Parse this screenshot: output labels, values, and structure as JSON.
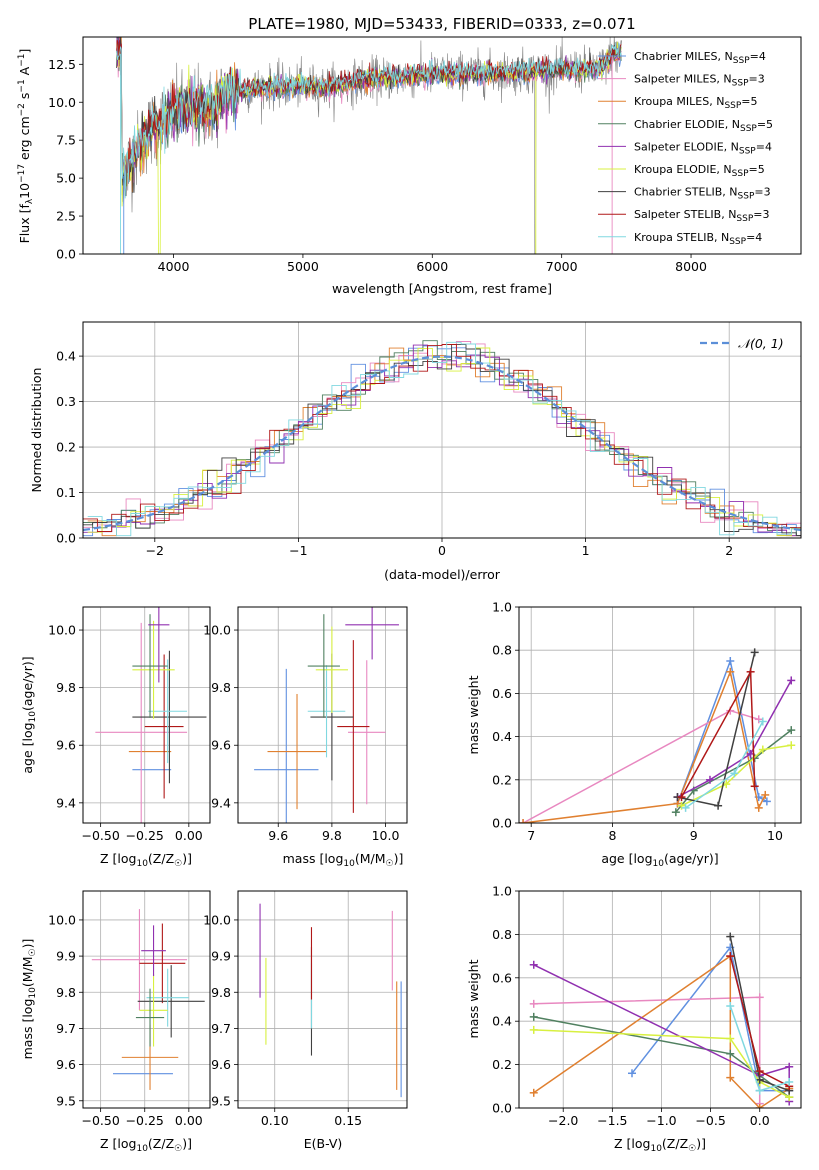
{
  "colors": {
    "c_ch_miles": "#6090e0",
    "c_sa_miles": "#e888c0",
    "c_kr_miles": "#e08030",
    "c_ch_elodie": "#508060",
    "c_sa_elodie": "#9030b0",
    "c_kr_elodie": "#d8f040",
    "c_ch_stelib": "#404040",
    "c_sa_stelib": "#b01818",
    "c_kr_stelib": "#80d8e0",
    "spec_gray": "#808080",
    "normal_curve": "#5b8fd8"
  },
  "chart_data": [
    {
      "id": "spectrum",
      "type": "line",
      "title": "PLATE=1980, MJD=53433, FIBERID=0333, z=0.071",
      "xlabel": "wavelength [Angstrom, rest frame]",
      "ylabel": "Flux [f",
      "ylabel_sub": "λ",
      "ylabel_rest": "10",
      "ylabel_sup1": "−17",
      "ylabel_units": " erg cm",
      "ylabel_sup2": "−2",
      "ylabel_units2": " s",
      "ylabel_sup3": "−1",
      "ylabel_units3": " A",
      "ylabel_sup4": "−1",
      "ylabel_close": "]",
      "xlim": [
        3300,
        8850
      ],
      "ylim": [
        0,
        14.3
      ],
      "xticks": [
        "4000",
        "5000",
        "6000",
        "7000",
        "8000"
      ],
      "xtick_values": [
        4000,
        5000,
        6000,
        7000,
        8000
      ],
      "yticks": [
        "0.0",
        "2.5",
        "5.0",
        "7.5",
        "10.0",
        "12.5"
      ],
      "ytick_values": [
        0,
        2.5,
        5.0,
        7.5,
        10.0,
        12.5
      ],
      "continuum": [
        [
          3600,
          4.9
        ],
        [
          3700,
          6.5
        ],
        [
          3800,
          8.0
        ],
        [
          3900,
          8.6
        ],
        [
          4000,
          9.3
        ],
        [
          4100,
          9.5
        ],
        [
          4200,
          9.8
        ],
        [
          4300,
          9.5
        ],
        [
          4400,
          10.6
        ],
        [
          4500,
          10.7
        ],
        [
          4700,
          11.0
        ],
        [
          5000,
          11.1
        ],
        [
          5200,
          11.0
        ],
        [
          5500,
          11.5
        ],
        [
          5800,
          11.7
        ],
        [
          6100,
          11.9
        ],
        [
          6400,
          11.9
        ],
        [
          6700,
          12.0
        ],
        [
          7000,
          12.1
        ],
        [
          7300,
          12.2
        ],
        [
          7400,
          13.2
        ]
      ],
      "legend": [
        {
          "label": "Chabrier MILES, N",
          "sub": "SSP",
          "tail": "=4"
        },
        {
          "label": "Salpeter MILES, N",
          "sub": "SSP",
          "tail": "=3"
        },
        {
          "label": "Kroupa MILES, N",
          "sub": "SSP",
          "tail": "=5"
        },
        {
          "label": "Chabrier ELODIE, N",
          "sub": "SSP",
          "tail": "=5"
        },
        {
          "label": "Salpeter ELODIE, N",
          "sub": "SSP",
          "tail": "=4"
        },
        {
          "label": "Kroupa ELODIE, N",
          "sub": "SSP",
          "tail": "=5"
        },
        {
          "label": "Chabrier STELIB, N",
          "sub": "SSP",
          "tail": "=3"
        },
        {
          "label": "Salpeter STELIB, N",
          "sub": "SSP",
          "tail": "=3"
        },
        {
          "label": "Kroupa STELIB, N",
          "sub": "SSP",
          "tail": "=4"
        }
      ]
    },
    {
      "id": "residuals",
      "type": "histogram",
      "xlabel": "(data-model)/error",
      "ylabel": "Normed distribution",
      "xlim": [
        -2.5,
        2.5
      ],
      "ylim": [
        0,
        0.475
      ],
      "xticks": [
        "−2",
        "−1",
        "0",
        "1",
        "2"
      ],
      "xtick_values": [
        -2,
        -1,
        0,
        1,
        2
      ],
      "yticks": [
        "0.0",
        "0.1",
        "0.2",
        "0.3",
        "0.4"
      ],
      "ytick_values": [
        0,
        0.1,
        0.2,
        0.3,
        0.4
      ],
      "grid": true,
      "legend_label": "𝒩(0, 1)",
      "bin_width": 0.1
    },
    {
      "id": "age_vs_Z",
      "type": "errorbar",
      "xlabel": "Z [log",
      "xlabel_sub": "10",
      "xlabel_rest": "(Z/Z",
      "xlabel_sub2": "☉",
      "xlabel_close": ")]",
      "ylabel": "age  [log",
      "ylabel_sub": "10",
      "ylabel_rest": "(age/yr)]",
      "xlim": [
        -0.6,
        0.12
      ],
      "ylim": [
        9.33,
        10.08
      ],
      "xticks": [
        "−0.50",
        "−0.25",
        "0.00"
      ],
      "xtick_values": [
        -0.5,
        -0.25,
        0.0
      ],
      "yticks": [
        "9.4",
        "9.6",
        "9.8",
        "10.0"
      ],
      "ytick_values": [
        9.4,
        9.6,
        9.8,
        10.0
      ],
      "grid": true,
      "points": [
        {
          "c": "c_ch_miles",
          "x": -0.21,
          "xe": 0.11,
          "y": 9.515,
          "ye": 0.0
        },
        {
          "c": "c_kr_miles",
          "x": -0.22,
          "xe": 0.12,
          "y": 9.578,
          "ye": 0.0
        },
        {
          "c": "c_sa_miles",
          "x": -0.27,
          "xe": 0.26,
          "y": 9.645,
          "ye": 0.38
        },
        {
          "c": "c_sa_stelib",
          "x": -0.14,
          "xe": 0.11,
          "y": 9.665,
          "ye": 0.25
        },
        {
          "c": "c_ch_stelib",
          "x": -0.11,
          "xe": 0.21,
          "y": 9.698,
          "ye": 0.23
        },
        {
          "c": "c_kr_stelib",
          "x": -0.12,
          "xe": 0.11,
          "y": 9.718,
          "ye": 0.18
        },
        {
          "c": "c_kr_elodie",
          "x": -0.2,
          "xe": 0.12,
          "y": 9.862,
          "ye": 0.17
        },
        {
          "c": "c_ch_elodie",
          "x": -0.22,
          "xe": 0.1,
          "y": 9.875,
          "ye": 0.18
        },
        {
          "c": "c_sa_elodie",
          "x": -0.17,
          "xe": 0.06,
          "y": 10.018,
          "ye": 0.2
        }
      ]
    },
    {
      "id": "age_vs_mass",
      "type": "errorbar",
      "xlabel": "mass [log",
      "xlabel_sub": "10",
      "xlabel_rest": "(M/M",
      "xlabel_sub2": "☉",
      "xlabel_close": ")]",
      "xlim": [
        9.45,
        10.08
      ],
      "ylim": [
        9.33,
        10.08
      ],
      "xticks": [
        "9.6",
        "9.8",
        "10.0"
      ],
      "xtick_values": [
        9.6,
        9.8,
        10.0
      ],
      "yticks": [
        "9.4",
        "9.6",
        "9.8",
        "10.0"
      ],
      "ytick_values": [
        9.4,
        9.6,
        9.8,
        10.0
      ],
      "grid": true,
      "points": [
        {
          "c": "c_ch_miles",
          "x": 9.63,
          "xe": 0.12,
          "y": 9.515,
          "ye": 0.35
        },
        {
          "c": "c_kr_miles",
          "x": 9.67,
          "xe": 0.11,
          "y": 9.578,
          "ye": 0.2
        },
        {
          "c": "c_sa_miles",
          "x": 9.93,
          "xe": 0.07,
          "y": 9.645,
          "ye": 0.25
        },
        {
          "c": "c_sa_stelib",
          "x": 9.88,
          "xe": 0.06,
          "y": 9.665,
          "ye": 0.3
        },
        {
          "c": "c_ch_stelib",
          "x": 9.8,
          "xe": 0.08,
          "y": 9.698,
          "ye": 0.22
        },
        {
          "c": "c_kr_stelib",
          "x": 9.78,
          "xe": 0.07,
          "y": 9.718,
          "ye": 0.16
        },
        {
          "c": "c_kr_elodie",
          "x": 9.8,
          "xe": 0.06,
          "y": 9.862,
          "ye": 0.15
        },
        {
          "c": "c_ch_elodie",
          "x": 9.77,
          "xe": 0.06,
          "y": 9.875,
          "ye": 0.18
        },
        {
          "c": "c_sa_elodie",
          "x": 9.95,
          "xe": 0.1,
          "y": 10.018,
          "ye": 0.12
        }
      ]
    },
    {
      "id": "weight_vs_age",
      "type": "line",
      "xlabel": "age  [log",
      "xlabel_sub": "10",
      "xlabel_rest": "(age/yr)]",
      "ylabel": "mass weight",
      "xlim": [
        6.85,
        10.32
      ],
      "ylim": [
        0,
        1
      ],
      "xticks": [
        "7",
        "8",
        "9",
        "10"
      ],
      "xtick_values": [
        7,
        8,
        9,
        10
      ],
      "yticks": [
        "0.0",
        "0.2",
        "0.4",
        "0.6",
        "0.8",
        "1.0"
      ],
      "ytick_values": [
        0,
        0.2,
        0.4,
        0.6,
        0.8,
        1.0
      ],
      "grid": true,
      "series": [
        {
          "c": "c_ch_miles",
          "pts": [
            [
              8.8,
              0.09
            ],
            [
              9.45,
              0.75
            ],
            [
              9.8,
              0.12
            ],
            [
              9.9,
              0.1
            ]
          ]
        },
        {
          "c": "c_sa_miles",
          "pts": [
            [
              6.9,
              0.0
            ],
            [
              9.45,
              0.52
            ],
            [
              9.8,
              0.48
            ]
          ]
        },
        {
          "c": "c_kr_miles",
          "pts": [
            [
              6.9,
              0.0
            ],
            [
              8.8,
              0.09
            ],
            [
              9.45,
              0.7
            ],
            [
              9.8,
              0.07
            ],
            [
              9.88,
              0.13
            ]
          ]
        },
        {
          "c": "c_ch_elodie",
          "pts": [
            [
              8.78,
              0.05
            ],
            [
              9.0,
              0.15
            ],
            [
              9.75,
              0.3
            ],
            [
              10.2,
              0.43
            ]
          ]
        },
        {
          "c": "c_sa_elodie",
          "pts": [
            [
              8.8,
              0.12
            ],
            [
              9.2,
              0.2
            ],
            [
              9.7,
              0.32
            ],
            [
              10.2,
              0.66
            ]
          ]
        },
        {
          "c": "c_kr_elodie",
          "pts": [
            [
              8.85,
              0.08
            ],
            [
              9.4,
              0.18
            ],
            [
              9.85,
              0.34
            ],
            [
              10.2,
              0.36
            ]
          ]
        },
        {
          "c": "c_ch_stelib",
          "pts": [
            [
              8.8,
              0.12
            ],
            [
              9.3,
              0.08
            ],
            [
              9.75,
              0.79
            ]
          ]
        },
        {
          "c": "c_sa_stelib",
          "pts": [
            [
              8.85,
              0.12
            ],
            [
              9.7,
              0.7
            ],
            [
              9.75,
              0.17
            ]
          ]
        },
        {
          "c": "c_kr_stelib",
          "pts": [
            [
              8.9,
              0.07
            ],
            [
              9.5,
              0.23
            ],
            [
              9.85,
              0.47
            ]
          ]
        }
      ]
    },
    {
      "id": "mass_vs_Z",
      "type": "errorbar",
      "xlabel": "Z [log",
      "xlabel_sub": "10",
      "xlabel_rest": "(Z/Z",
      "xlabel_sub2": "☉",
      "xlabel_close": ")]",
      "ylabel": "mass [log",
      "ylabel_sub": "10",
      "ylabel_rest": "(M/M",
      "ylabel_sub2": "☉",
      "ylabel_close": ")]",
      "xlim": [
        -0.6,
        0.12
      ],
      "ylim": [
        9.48,
        10.08
      ],
      "xticks": [
        "−0.50",
        "−0.25",
        "0.00"
      ],
      "xtick_values": [
        -0.5,
        -0.25,
        0.0
      ],
      "yticks": [
        "9.5",
        "9.6",
        "9.7",
        "9.8",
        "9.9",
        "10.0"
      ],
      "ytick_values": [
        9.5,
        9.6,
        9.7,
        9.8,
        9.9,
        10.0
      ],
      "grid": true,
      "points": [
        {
          "c": "c_ch_miles",
          "x": -0.26,
          "xe": 0.17,
          "y": 9.575,
          "ye": 0.0
        },
        {
          "c": "c_kr_miles",
          "x": -0.22,
          "xe": 0.16,
          "y": 9.62,
          "ye": 0.09
        },
        {
          "c": "c_sa_miles",
          "x": -0.28,
          "xe": 0.27,
          "y": 9.89,
          "ye": 0.14
        },
        {
          "c": "c_sa_stelib",
          "x": -0.15,
          "xe": 0.13,
          "y": 9.88,
          "ye": 0.11
        },
        {
          "c": "c_ch_stelib",
          "x": -0.1,
          "xe": 0.19,
          "y": 9.775,
          "ye": 0.1
        },
        {
          "c": "c_kr_stelib",
          "x": -0.12,
          "xe": 0.12,
          "y": 9.785,
          "ye": 0.08
        },
        {
          "c": "c_kr_elodie",
          "x": -0.2,
          "xe": 0.08,
          "y": 9.75,
          "ye": 0.1
        },
        {
          "c": "c_ch_elodie",
          "x": -0.22,
          "xe": 0.08,
          "y": 9.73,
          "ye": 0.08
        },
        {
          "c": "c_sa_elodie",
          "x": -0.2,
          "xe": 0.07,
          "y": 9.915,
          "ye": 0.07
        }
      ]
    },
    {
      "id": "mass_vs_EBV",
      "type": "errorbar",
      "xlabel": "E(B-V)",
      "xlim": [
        0.075,
        0.19
      ],
      "ylim": [
        9.48,
        10.08
      ],
      "xticks": [
        "0.10",
        "0.15"
      ],
      "xtick_values": [
        0.1,
        0.15
      ],
      "yticks": [
        "9.5",
        "9.6",
        "9.7",
        "9.8",
        "9.9",
        "10.0"
      ],
      "ytick_values": [
        9.5,
        9.6,
        9.7,
        9.8,
        9.9,
        10.0
      ],
      "grid": true,
      "points": [
        {
          "c": "c_sa_elodie",
          "x": 0.09,
          "y": 9.915,
          "ye": 0.13
        },
        {
          "c": "c_kr_elodie",
          "x": 0.094,
          "y": 9.775,
          "ye": 0.12
        },
        {
          "c": "c_ch_stelib",
          "x": 0.125,
          "y": 9.775,
          "ye": 0.15
        },
        {
          "c": "c_kr_stelib",
          "x": 0.125,
          "y": 9.79,
          "ye": 0.09
        },
        {
          "c": "c_sa_stelib",
          "x": 0.125,
          "y": 9.88,
          "ye": 0.1
        },
        {
          "c": "c_sa_miles",
          "x": 0.18,
          "y": 9.915,
          "ye": 0.11
        },
        {
          "c": "c_kr_miles",
          "x": 0.183,
          "y": 9.68,
          "ye": 0.15
        },
        {
          "c": "c_ch_miles",
          "x": 0.186,
          "y": 9.67,
          "ye": 0.16
        }
      ]
    },
    {
      "id": "weight_vs_Z",
      "type": "line",
      "xlabel": "Z [log",
      "xlabel_sub": "10",
      "xlabel_rest": "(Z/Z",
      "xlabel_sub2": "☉",
      "xlabel_close": ")]",
      "ylabel": "mass weight",
      "xlim": [
        -2.45,
        0.42
      ],
      "ylim": [
        0,
        1
      ],
      "xticks": [
        "−2.0",
        "−1.5",
        "−1.0",
        "−0.5",
        "0.0"
      ],
      "xtick_values": [
        -2.0,
        -1.5,
        -1.0,
        -0.5,
        0.0
      ],
      "yticks": [
        "0.0",
        "0.2",
        "0.4",
        "0.6",
        "0.8",
        "1.0"
      ],
      "ytick_values": [
        0,
        0.2,
        0.4,
        0.6,
        0.8,
        1.0
      ],
      "grid": true,
      "series": [
        {
          "c": "c_ch_miles",
          "pts": [
            [
              -1.3,
              0.16
            ],
            [
              -0.3,
              0.74
            ],
            [
              0.0,
              0.08
            ],
            [
              0.3,
              0.08
            ]
          ]
        },
        {
          "c": "c_sa_miles",
          "pts": [
            [
              -2.3,
              0.48
            ],
            [
              0.0,
              0.51
            ],
            [
              0.0,
              0.02
            ]
          ]
        },
        {
          "c": "c_kr_miles",
          "pts": [
            [
              -2.3,
              0.07
            ],
            [
              -0.3,
              0.7
            ],
            [
              -0.3,
              0.14
            ],
            [
              0.0,
              0.0
            ],
            [
              0.3,
              0.09
            ]
          ]
        },
        {
          "c": "c_ch_elodie",
          "pts": [
            [
              -2.3,
              0.42
            ],
            [
              -0.3,
              0.25
            ],
            [
              0.0,
              0.15
            ],
            [
              0.3,
              0.05
            ]
          ]
        },
        {
          "c": "c_sa_elodie",
          "pts": [
            [
              -2.3,
              0.66
            ],
            [
              0.0,
              0.15
            ],
            [
              0.3,
              0.19
            ],
            [
              0.3,
              0.03
            ]
          ]
        },
        {
          "c": "c_kr_elodie",
          "pts": [
            [
              -2.3,
              0.36
            ],
            [
              -0.3,
              0.32
            ],
            [
              0.0,
              0.12
            ],
            [
              0.3,
              0.05
            ]
          ]
        },
        {
          "c": "c_ch_stelib",
          "pts": [
            [
              -0.3,
              0.79
            ],
            [
              0.0,
              0.13
            ],
            [
              0.3,
              0.08
            ]
          ]
        },
        {
          "c": "c_sa_stelib",
          "pts": [
            [
              -0.3,
              0.7
            ],
            [
              0.0,
              0.17
            ],
            [
              0.3,
              0.1
            ]
          ]
        },
        {
          "c": "c_kr_stelib",
          "pts": [
            [
              -0.3,
              0.47
            ],
            [
              0.0,
              0.08
            ],
            [
              0.3,
              0.12
            ]
          ]
        }
      ]
    }
  ]
}
